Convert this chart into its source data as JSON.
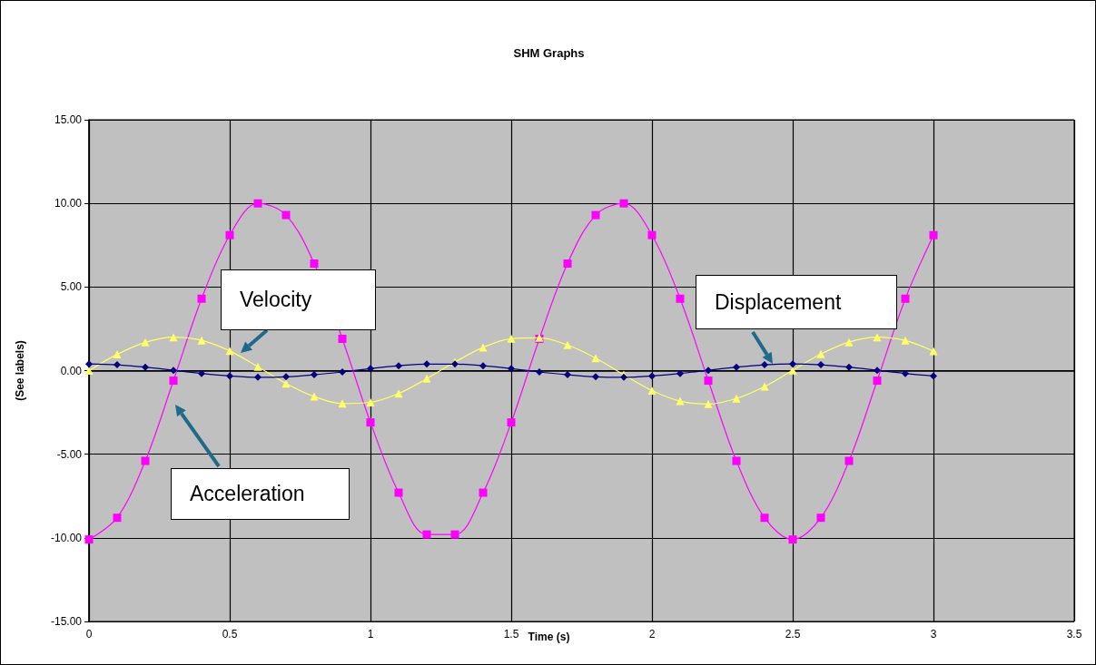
{
  "chart_data": {
    "type": "line",
    "title": "SHM Graphs",
    "xlabel": "Time (s)",
    "ylabel": "(See labels)",
    "x": [
      0,
      0.1,
      0.2,
      0.3,
      0.4,
      0.5,
      0.6,
      0.7,
      0.8,
      0.9,
      1.0,
      1.1,
      1.2,
      1.3,
      1.4,
      1.5,
      1.6,
      1.7,
      1.8,
      1.9,
      2.0,
      2.1,
      2.2,
      2.3,
      2.4,
      2.5,
      2.6,
      2.7,
      2.8,
      2.9,
      3.0
    ],
    "series": [
      {
        "name": "Displacement",
        "color": "#000080",
        "marker": "diamond",
        "values": [
          0.4,
          0.35,
          0.21,
          0.02,
          -0.17,
          -0.32,
          -0.4,
          -0.37,
          -0.25,
          -0.08,
          0.12,
          0.29,
          0.39,
          0.39,
          0.29,
          0.12,
          -0.08,
          -0.25,
          -0.37,
          -0.4,
          -0.32,
          -0.17,
          0.02,
          0.21,
          0.35,
          0.4,
          0.35,
          0.21,
          0.02,
          -0.17,
          -0.32
        ]
      },
      {
        "name": "Velocity",
        "color": "#ffff66",
        "marker": "triangle",
        "values": [
          0,
          0.97,
          1.69,
          2.0,
          1.81,
          1.18,
          0.23,
          -0.77,
          -1.55,
          -1.97,
          -1.9,
          -1.37,
          -0.48,
          0.51,
          1.39,
          1.91,
          1.96,
          1.53,
          0.75,
          -0.25,
          -1.19,
          -1.82,
          -2.0,
          -1.67,
          -0.95,
          0.02,
          0.99,
          1.7,
          2.0,
          1.8,
          1.16
        ]
      },
      {
        "name": "Acceleration",
        "color": "#ff00ff",
        "marker": "square",
        "values": [
          -10.1,
          -8.8,
          -5.4,
          -0.6,
          4.3,
          8.1,
          10.0,
          9.3,
          6.4,
          1.9,
          -3.1,
          -7.3,
          -9.8,
          -9.8,
          -7.3,
          -3.1,
          1.9,
          6.4,
          9.3,
          10.0,
          8.1,
          4.3,
          -0.6,
          -5.4,
          -8.8,
          -10.1,
          -8.8,
          -5.4,
          -0.6,
          4.3,
          8.1
        ]
      }
    ],
    "xlim": [
      0,
      3.5
    ],
    "xticks": [
      0,
      0.5,
      1,
      1.5,
      2,
      2.5,
      3,
      3.5
    ],
    "ylim": [
      -15,
      15
    ],
    "yticks": [
      {
        "value": -15,
        "label": "-15.00"
      },
      {
        "value": -10,
        "label": "-10.00"
      },
      {
        "value": -5,
        "label": "-5.00"
      },
      {
        "value": 0,
        "label": "0.00"
      },
      {
        "value": 5,
        "label": "5.00"
      },
      {
        "value": 10,
        "label": "10.00"
      },
      {
        "value": 15,
        "label": "15.00"
      }
    ],
    "grid": true
  }
}
